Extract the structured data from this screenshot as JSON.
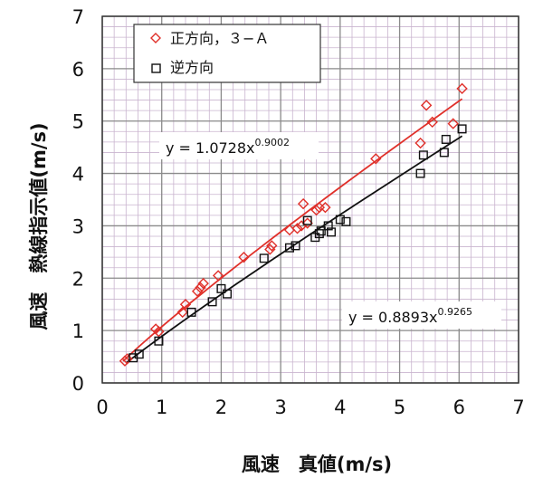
{
  "chart_data": {
    "type": "scatter",
    "xlabel": "風速　真値(m/s)",
    "ylabel": "風速　熱線指示値(m/s)",
    "xlim": [
      0,
      7
    ],
    "ylim": [
      0,
      7
    ],
    "x_ticks": [
      "0",
      "1",
      "2",
      "3",
      "4",
      "5",
      "6",
      "7"
    ],
    "y_ticks": [
      "0",
      "1",
      "2",
      "3",
      "4",
      "5",
      "6",
      "7"
    ],
    "grid": true,
    "legend_position": "top-left",
    "series": [
      {
        "name": "正方向，３−Ａ",
        "marker": "diamond",
        "color": "#e0302a",
        "points": [
          [
            0.38,
            0.42
          ],
          [
            0.42,
            0.46
          ],
          [
            0.9,
            1.03
          ],
          [
            0.95,
            0.98
          ],
          [
            1.35,
            1.35
          ],
          [
            1.4,
            1.5
          ],
          [
            1.6,
            1.75
          ],
          [
            1.65,
            1.82
          ],
          [
            1.7,
            1.9
          ],
          [
            1.95,
            2.05
          ],
          [
            2.38,
            2.4
          ],
          [
            2.82,
            2.55
          ],
          [
            2.85,
            2.62
          ],
          [
            3.15,
            2.92
          ],
          [
            3.28,
            2.95
          ],
          [
            3.35,
            3.0
          ],
          [
            3.38,
            3.42
          ],
          [
            3.45,
            3.05
          ],
          [
            3.6,
            3.3
          ],
          [
            3.65,
            3.35
          ],
          [
            3.75,
            3.35
          ],
          [
            4.6,
            4.28
          ],
          [
            5.35,
            4.58
          ],
          [
            5.45,
            5.3
          ],
          [
            5.55,
            4.98
          ],
          [
            5.9,
            4.95
          ],
          [
            6.05,
            5.62
          ]
        ],
        "fit": {
          "a": 1.0728,
          "b": 0.9002,
          "x_range": [
            0.35,
            6.05
          ],
          "label": "y = 1.0728x",
          "exponent": "0.9002"
        }
      },
      {
        "name": "逆方向",
        "marker": "square",
        "color": "#111111",
        "points": [
          [
            0.52,
            0.48
          ],
          [
            0.62,
            0.55
          ],
          [
            0.95,
            0.8
          ],
          [
            1.5,
            1.35
          ],
          [
            1.85,
            1.55
          ],
          [
            2.0,
            1.8
          ],
          [
            2.1,
            1.7
          ],
          [
            2.72,
            2.38
          ],
          [
            3.15,
            2.58
          ],
          [
            3.25,
            2.62
          ],
          [
            3.45,
            3.1
          ],
          [
            3.58,
            2.78
          ],
          [
            3.65,
            2.85
          ],
          [
            3.68,
            2.9
          ],
          [
            3.8,
            3.0
          ],
          [
            3.85,
            2.88
          ],
          [
            4.0,
            3.12
          ],
          [
            4.1,
            3.08
          ],
          [
            5.35,
            4.0
          ],
          [
            5.4,
            4.35
          ],
          [
            5.75,
            4.4
          ],
          [
            5.78,
            4.65
          ],
          [
            6.05,
            4.85
          ]
        ],
        "fit": {
          "a": 0.8893,
          "b": 0.9265,
          "x_range": [
            0.4,
            6.05
          ],
          "label": "y = 0.8893x",
          "exponent": "0.9265"
        }
      }
    ]
  }
}
